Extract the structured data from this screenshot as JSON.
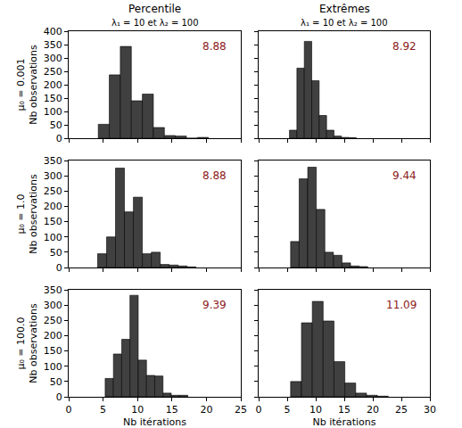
{
  "chart_data": [
    {
      "type": "histogram",
      "title": "Percentile",
      "subtitle": "λ₁ = 10 et λ₂ = 100",
      "row_label": "μ₀ = 0.001",
      "ylabel": "Nb observations",
      "bins": [
        4.3,
        5.9,
        7.5,
        9.1,
        10.7,
        12.3,
        13.9,
        15.5,
        17.1,
        18.7,
        20.3
      ],
      "counts": [
        52,
        237,
        343,
        140,
        165,
        40,
        10,
        8,
        0,
        3
      ],
      "color": "#404040",
      "xlim": [
        0,
        25
      ],
      "xticks": [
        0,
        5,
        10,
        15,
        20,
        25
      ],
      "ylim": [
        0,
        400
      ],
      "yticks": [
        0,
        50,
        100,
        150,
        200,
        250,
        300,
        350,
        400
      ],
      "tick_labels": "y",
      "annotations": [
        {
          "text": "8.88"
        }
      ]
    },
    {
      "type": "histogram",
      "title": "Extrêmes",
      "subtitle": "λ₁ = 10 et λ₂ = 100",
      "bins": [
        5.4,
        6.7,
        8,
        9.3,
        10.6,
        11.9,
        13.2,
        14.5,
        15.8,
        17.1
      ],
      "counts": [
        30,
        262,
        362,
        215,
        85,
        30,
        8,
        3,
        2
      ],
      "color": "#404040",
      "xlim": [
        0,
        30
      ],
      "xticks": [
        0,
        5,
        10,
        15,
        20,
        25,
        30
      ],
      "ylim": [
        0,
        400
      ],
      "yticks": [
        0,
        50,
        100,
        150,
        200,
        250,
        300,
        350,
        400
      ],
      "tick_labels": false,
      "annotations": [
        {
          "text": "8.92"
        }
      ]
    },
    {
      "type": "histogram",
      "row_label": "μ₀ = 1.0",
      "ylabel": "Nb observations",
      "bins": [
        4.2,
        5.5,
        6.8,
        8.1,
        9.4,
        10.7,
        12,
        13.3,
        14.6,
        15.9,
        17.2,
        18.5
      ],
      "counts": [
        45,
        100,
        325,
        182,
        230,
        45,
        50,
        10,
        8,
        5,
        2
      ],
      "color": "#404040",
      "xlim": [
        0,
        25
      ],
      "xticks": [
        0,
        5,
        10,
        15,
        20,
        25
      ],
      "ylim": [
        0,
        350
      ],
      "yticks": [
        0,
        50,
        100,
        150,
        200,
        250,
        300,
        350
      ],
      "tick_labels": "y",
      "annotations": [
        {
          "text": "8.88"
        }
      ]
    },
    {
      "type": "histogram",
      "bins": [
        5.6,
        7.1,
        8.6,
        10.1,
        11.6,
        13.1,
        14.6,
        16.1,
        17.6,
        19.1
      ],
      "counts": [
        85,
        290,
        328,
        190,
        50,
        40,
        15,
        5,
        3
      ],
      "color": "#404040",
      "xlim": [
        0,
        30
      ],
      "xticks": [
        0,
        5,
        10,
        15,
        20,
        25,
        30
      ],
      "ylim": [
        0,
        350
      ],
      "yticks": [
        0,
        50,
        100,
        150,
        200,
        250,
        300,
        350
      ],
      "tick_labels": false,
      "annotations": [
        {
          "text": "9.44"
        }
      ]
    },
    {
      "type": "histogram",
      "row_label": "μ₀ = 100.0",
      "ylabel": "Nb observations",
      "xlabel": "Nb itérations",
      "bins": [
        5.3,
        6.5,
        7.7,
        8.9,
        10.1,
        11.3,
        12.5,
        13.7,
        14.9,
        16.1,
        17.3
      ],
      "counts": [
        60,
        140,
        188,
        332,
        120,
        70,
        68,
        12,
        5,
        5
      ],
      "color": "#404040",
      "xlim": [
        0,
        25
      ],
      "xticks": [
        0,
        5,
        10,
        15,
        20,
        25
      ],
      "ylim": [
        0,
        350
      ],
      "yticks": [
        0,
        50,
        100,
        150,
        200,
        250,
        300,
        350
      ],
      "annotations": [
        {
          "text": "9.39"
        }
      ]
    },
    {
      "type": "histogram",
      "xlabel": "Nb itérations",
      "bins": [
        5.6,
        7.5,
        9.4,
        11.3,
        13.2,
        15.1,
        17,
        18.9,
        20.8,
        22.7
      ],
      "counts": [
        50,
        242,
        312,
        248,
        115,
        45,
        12,
        5,
        2
      ],
      "color": "#404040",
      "xlim": [
        0,
        30
      ],
      "xticks": [
        0,
        5,
        10,
        15,
        20,
        25,
        30
      ],
      "ylim": [
        0,
        350
      ],
      "yticks": [
        0,
        50,
        100,
        150,
        200,
        250,
        300,
        350
      ],
      "tick_labels": "x",
      "annotations": [
        {
          "text": "11.09"
        }
      ]
    }
  ]
}
